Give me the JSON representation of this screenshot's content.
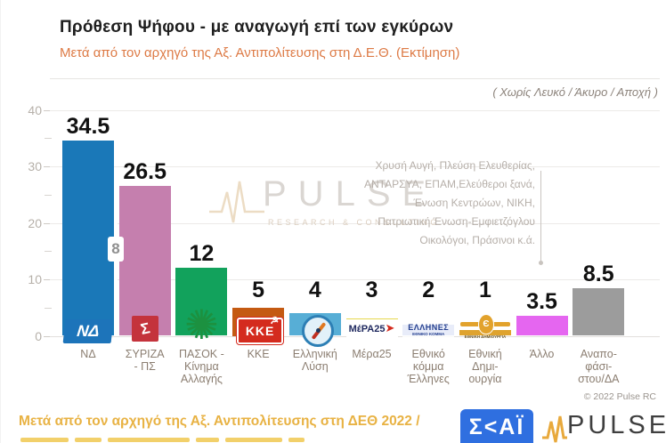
{
  "header": {
    "title": "Πρόθεση Ψήφου - με αναγωγή επί των εγκύρων",
    "subtitle": "Μετά από τον αρχηγό της Αξ. Αντιπολίτευσης στη Δ.Ε.Θ.  (Εκτίμηση)",
    "note": "( Χωρίς Λευκό / Άκυρο / Αποχή )"
  },
  "chart_data": {
    "type": "bar",
    "title": "Πρόθεση Ψήφου - με αναγωγή επί των εγκύρων",
    "subtitle": "Μετά από τον αρχηγό της Αξ. Αντιπολίτευσης στη Δ.Ε.Θ. (Εκτίμηση)",
    "ylabel": "",
    "xlabel": "",
    "ylim": [
      0,
      40
    ],
    "yticks": [
      0,
      10,
      20,
      30,
      40
    ],
    "minor_ticks": [
      5,
      15,
      25,
      35
    ],
    "grid": true,
    "legend": false,
    "gap_label": "8",
    "categories": [
      "ΝΔ",
      "ΣΥΡΙΖΑ - ΠΣ",
      "ΠΑΣΟΚ - Κίνημα Αλλαγής",
      "ΚΚΕ",
      "Ελληνική Λύση",
      "Μέρα25",
      "Εθνικό κόμμα Έλληνες",
      "Εθνική Δημι-ουργία",
      "Άλλο",
      "Αναπο-φάσι-στου/ΔΑ"
    ],
    "values": [
      34.5,
      26.5,
      12,
      5,
      4,
      3,
      2,
      1,
      3.5,
      8.5
    ],
    "bars": [
      {
        "category": "ΝΔ",
        "label_lines": [
          "ΝΔ"
        ],
        "value": 34.5,
        "display": "34.5",
        "color": "#1a78b8",
        "logo": "nd"
      },
      {
        "category": "ΣΥΡΙΖΑ - ΠΣ",
        "label_lines": [
          "ΣΥΡΙΖΑ",
          "- ΠΣ"
        ],
        "value": 26.5,
        "display": "26.5",
        "color": "#c57fae",
        "logo": "syriza"
      },
      {
        "category": "ΠΑΣΟΚ - Κίνημα Αλλαγής",
        "label_lines": [
          "ΠΑΣΟΚ -",
          "Κίνημα",
          "Αλλαγής"
        ],
        "value": 12,
        "display": "12",
        "color": "#12a25c",
        "logo": "pasok"
      },
      {
        "category": "ΚΚΕ",
        "label_lines": [
          "ΚΚΕ"
        ],
        "value": 5,
        "display": "5",
        "color": "#c45a12",
        "logo": "kke"
      },
      {
        "category": "Ελληνική Λύση",
        "label_lines": [
          "Ελληνική",
          "Λύση"
        ],
        "value": 4,
        "display": "4",
        "color": "#57aed6",
        "logo": "el"
      },
      {
        "category": "Μέρα25",
        "label_lines": [
          "Μέρα25"
        ],
        "value": 3,
        "display": "3",
        "color": "#e6d84e",
        "logo": "mera25"
      },
      {
        "category": "Εθνικό κόμμα Έλληνες",
        "label_lines": [
          "Εθνικό",
          "κόμμα",
          "Έλληνες"
        ],
        "value": 2,
        "display": "2",
        "color": "#8c9fe0",
        "logo": "ellines"
      },
      {
        "category": "Εθνική Δημιουργία",
        "label_lines": [
          "Εθνική",
          "Δημι-",
          "ουργία"
        ],
        "value": 1,
        "display": "1",
        "color": "#dfa32e",
        "logo": "ed"
      },
      {
        "category": "Άλλο",
        "label_lines": [
          "Άλλο"
        ],
        "value": 3.5,
        "display": "3.5",
        "color": "#e566f0",
        "logo": null
      },
      {
        "category": "Αναποφάσιστοι/ΔΑ",
        "label_lines": [
          "Αναπο-",
          "φάσι-",
          "στου/ΔΑ"
        ],
        "value": 8.5,
        "display": "8.5",
        "color": "#9c9c9c",
        "logo": null
      }
    ]
  },
  "annotation": {
    "lines": [
      "Χρυσή Αυγή, Πλεύση Ελευθερίας,",
      "ΑΝΤΑΡΣΥΑ, ΕΠΑΜ,Ελεύθεροι ξανά,",
      "Ένωση Κεντρώων,  ΝΙΚΗ,",
      "Πατριωτική Ένωση-Εμφιετζόγλου",
      "Οικολόγοι, Πράσινοι  κ.ά."
    ]
  },
  "watermark": {
    "brand": "PULSE",
    "tagline": "RESEARCH & CONSULTING"
  },
  "logos": {
    "nd": {
      "text": "ΝΔ"
    },
    "syriza": {
      "text": "Σ"
    },
    "pasok": {
      "glyph": "✺"
    },
    "kke": {
      "text": "KKE",
      "symbol": "☭"
    },
    "mera25": {
      "text": "ΜέΡΑ25",
      "arrow": "➤"
    },
    "ellines": {
      "line1": "ΕΛΛΗΝΕΣ",
      "line2": "ΕΘΝΙΚΟ ΚΟΜΜΑ"
    },
    "ed": {
      "symbol": "Є",
      "caption": "ΕΘΝΙΚΗ ΔΗΜΙΟΥΡΓΙΑ"
    }
  },
  "footer": {
    "copyright": "© 2022 Pulse RC",
    "caption": "Μετά από τον αρχηγό της Αξ. Αντιπολίτευσης στη ΔΕΘ  2022  /",
    "skai_text": "Σ<ΑΪ",
    "pulse_text": "PULSE"
  },
  "colors": {
    "accent_subtitle": "#dd7a45",
    "footer_gold": "#e8b243",
    "skai_blue": "#2f6fe0",
    "grid": "#eceae8",
    "tick_text": "#b6b0a9",
    "category_text": "#8b7e71"
  }
}
